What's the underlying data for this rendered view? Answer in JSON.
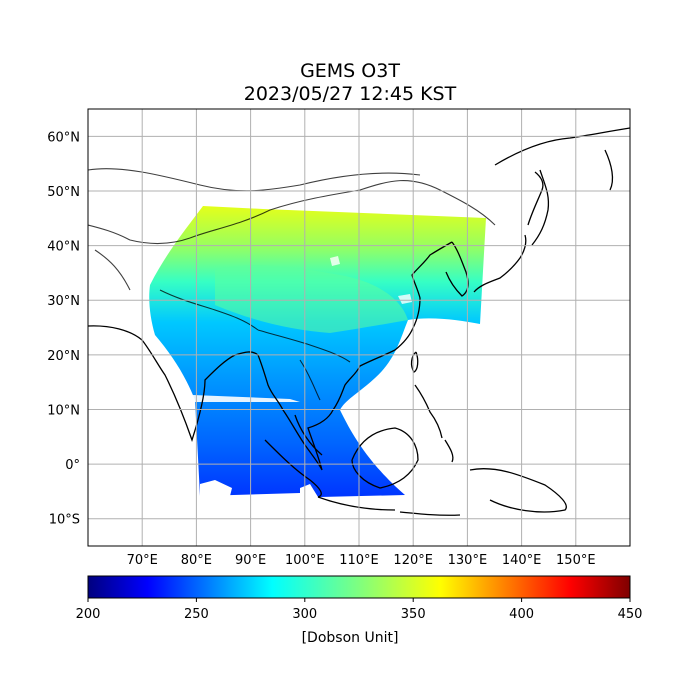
{
  "title": {
    "line1": "GEMS O3T",
    "line2": "2023/05/27 12:45 KST"
  },
  "map": {
    "lon_range": [
      60,
      160
    ],
    "lat_range": [
      -15,
      65
    ],
    "lon_ticks": [
      {
        "value": 70,
        "label": "70°E"
      },
      {
        "value": 80,
        "label": "80°E"
      },
      {
        "value": 90,
        "label": "90°E"
      },
      {
        "value": 100,
        "label": "100°E"
      },
      {
        "value": 110,
        "label": "110°E"
      },
      {
        "value": 120,
        "label": "120°E"
      },
      {
        "value": 130,
        "label": "130°E"
      },
      {
        "value": 140,
        "label": "140°E"
      },
      {
        "value": 150,
        "label": "150°E"
      }
    ],
    "lat_ticks": [
      {
        "value": 60,
        "label": "60°N"
      },
      {
        "value": 50,
        "label": "50°N"
      },
      {
        "value": 40,
        "label": "40°N"
      },
      {
        "value": 30,
        "label": "30°N"
      },
      {
        "value": 20,
        "label": "20°N"
      },
      {
        "value": 10,
        "label": "10°N"
      },
      {
        "value": 0,
        "label": "0°"
      },
      {
        "value": -10,
        "label": "10°S"
      }
    ],
    "grid": true
  },
  "colorbar": {
    "min": 200,
    "max": 450,
    "colormap": "jet",
    "ticks": [
      {
        "value": 200,
        "label": "200"
      },
      {
        "value": 250,
        "label": "250"
      },
      {
        "value": 300,
        "label": "300"
      },
      {
        "value": 350,
        "label": "350"
      },
      {
        "value": 400,
        "label": "400"
      },
      {
        "value": 450,
        "label": "450"
      }
    ],
    "unit_label": "[Dobson Unit]"
  }
}
